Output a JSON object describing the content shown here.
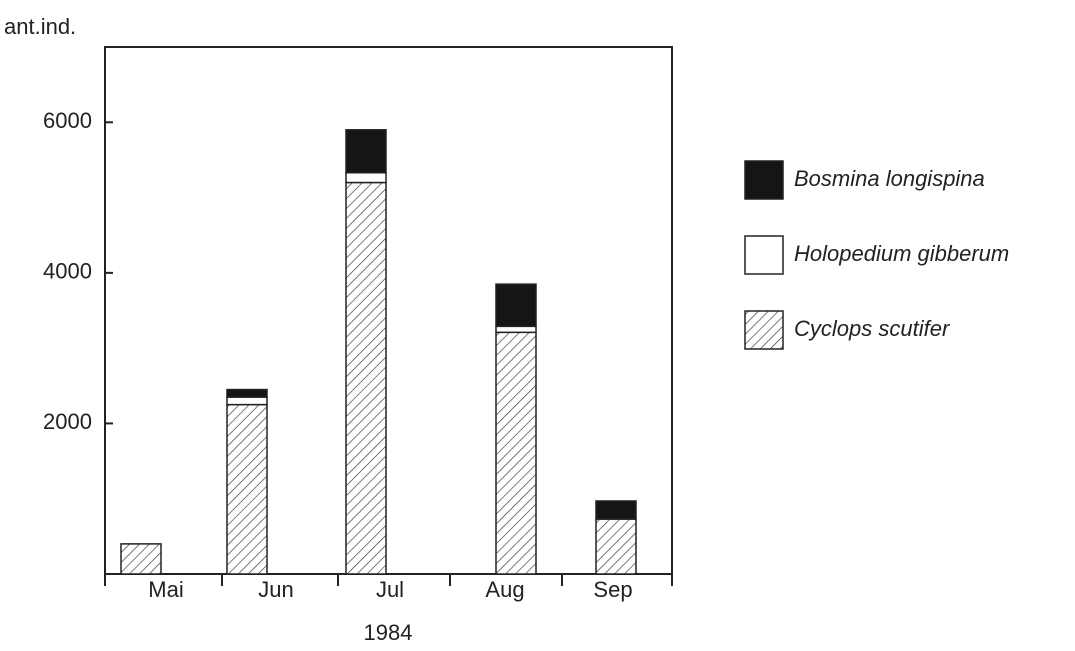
{
  "chart_data": {
    "type": "stacked-bar",
    "y_label": "ant.ind.",
    "x_label": "1984",
    "categories": [
      "Mai",
      "Jun",
      "Jul",
      "Aug",
      "Sep"
    ],
    "series": [
      {
        "name": "Cyclops scutifer",
        "color": "#ffffff",
        "pattern": "hatch",
        "values": [
          400,
          2250,
          5200,
          3210,
          730
        ]
      },
      {
        "name": "Holopedium gibberum",
        "color": "#ffffff",
        "pattern": "none",
        "values": [
          0,
          100,
          130,
          80,
          0
        ]
      },
      {
        "name": "Bosmina longispina",
        "color": "#151515",
        "pattern": "none",
        "values": [
          0,
          100,
          570,
          560,
          240
        ]
      }
    ],
    "ylim": [
      0,
      7000
    ],
    "yticks": [
      2000,
      4000,
      6000
    ],
    "grid": false
  }
}
